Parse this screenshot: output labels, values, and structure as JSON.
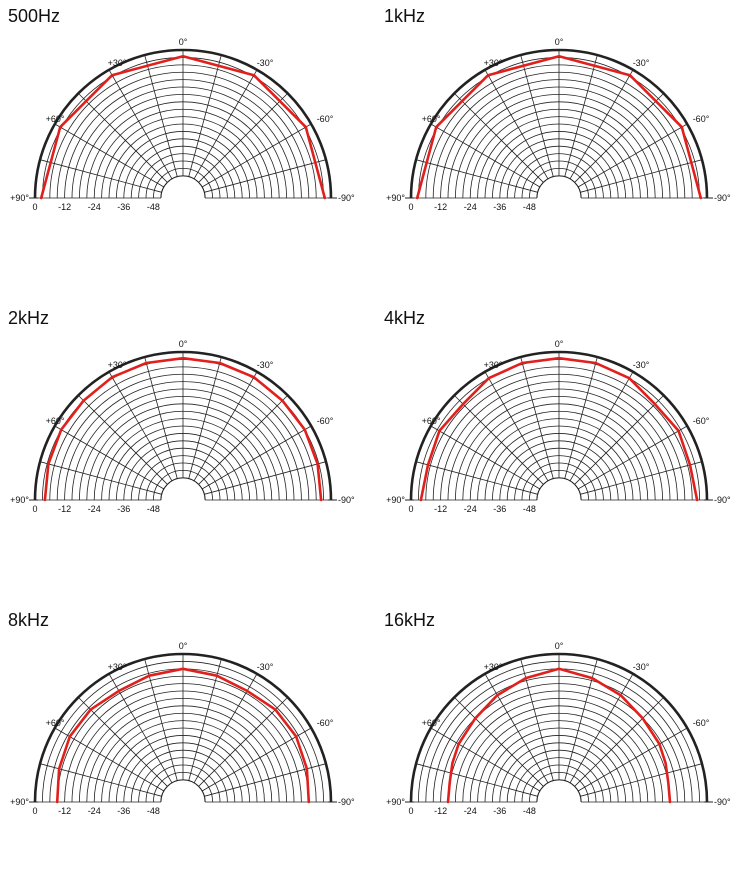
{
  "chart_data": [
    {
      "type": "polar",
      "title": "500Hz",
      "angle_labels": [
        "0°",
        "+30°",
        "-30°",
        "+60°",
        "-60°",
        "+90°",
        "-90°"
      ],
      "radial_labels": [
        "0",
        "-12",
        "-24",
        "-36",
        "-48"
      ],
      "series_color": "#e0201c",
      "angles": [
        -90,
        -60,
        -30,
        0,
        30,
        60,
        90
      ],
      "levels": [
        -2.5,
        -2.5,
        -2.5,
        -2.5,
        -2.5,
        -2.5,
        -2.5
      ]
    },
    {
      "type": "polar",
      "title": "1kHz",
      "angle_labels": [
        "0°",
        "+30°",
        "-30°",
        "+60°",
        "-60°",
        "+90°",
        "-90°"
      ],
      "radial_labels": [
        "0",
        "-12",
        "-24",
        "-36",
        "-48"
      ],
      "series_color": "#e0201c",
      "angles": [
        -90,
        -60,
        -30,
        0,
        30,
        60,
        90
      ],
      "levels": [
        -2.5,
        -2.5,
        -2.5,
        -2.5,
        -2.5,
        -2.5,
        -2.5
      ]
    },
    {
      "type": "polar",
      "title": "2kHz",
      "angle_labels": [
        "0°",
        "+30°",
        "-30°",
        "+60°",
        "-60°",
        "+90°",
        "-90°"
      ],
      "radial_labels": [
        "0",
        "-12",
        "-24",
        "-36",
        "-48"
      ],
      "series_color": "#e0201c",
      "angles": [
        -90,
        -75,
        -60,
        -45,
        -30,
        -15,
        0,
        15,
        30,
        45,
        60,
        75,
        90
      ],
      "levels": [
        -4,
        -3.5,
        -3,
        -3,
        -2.5,
        -2.5,
        -2.5,
        -2.5,
        -2.5,
        -3,
        -3,
        -3.5,
        -4
      ]
    },
    {
      "type": "polar",
      "title": "4kHz",
      "angle_labels": [
        "0°",
        "+30°",
        "-30°",
        "+60°",
        "-60°",
        "+90°",
        "-90°"
      ],
      "radial_labels": [
        "0",
        "-12",
        "-24",
        "-36",
        "-48"
      ],
      "series_color": "#e0201c",
      "angles": [
        -90,
        -75,
        -60,
        -45,
        -30,
        -15,
        0,
        15,
        30,
        45,
        60,
        75,
        90
      ],
      "levels": [
        -4,
        -5,
        -4,
        -5,
        -3,
        -2.5,
        -2.5,
        -2.5,
        -3,
        -5,
        -4,
        -5,
        -4
      ]
    },
    {
      "type": "polar",
      "title": "8kHz",
      "angle_labels": [
        "0°",
        "+30°",
        "-30°",
        "+60°",
        "-60°",
        "+90°",
        "-90°"
      ],
      "radial_labels": [
        "0",
        "-12",
        "-24",
        "-36",
        "-48"
      ],
      "series_color": "#e0201c",
      "angles": [
        -90,
        -75,
        -60,
        -45,
        -30,
        -15,
        0,
        15,
        30,
        45,
        60,
        75,
        90
      ],
      "levels": [
        -9,
        -8,
        -7,
        -7,
        -8,
        -7,
        -6,
        -7,
        -8,
        -7,
        -7,
        -8,
        -9
      ]
    },
    {
      "type": "polar",
      "title": "16kHz",
      "angle_labels": [
        "0°",
        "+30°",
        "-30°",
        "+60°",
        "-60°",
        "+90°",
        "-90°"
      ],
      "radial_labels": [
        "0",
        "-12",
        "-24",
        "-36",
        "-48"
      ],
      "series_color": "#e0201c",
      "angles": [
        -90,
        -80,
        -70,
        -60,
        -45,
        -30,
        -15,
        0,
        15,
        30,
        45,
        60,
        70,
        80,
        90
      ],
      "levels": [
        -15,
        -15,
        -14,
        -13,
        -12,
        -10,
        -8,
        -6,
        -8,
        -10,
        -12,
        -13,
        -14,
        -15,
        -15
      ]
    }
  ]
}
